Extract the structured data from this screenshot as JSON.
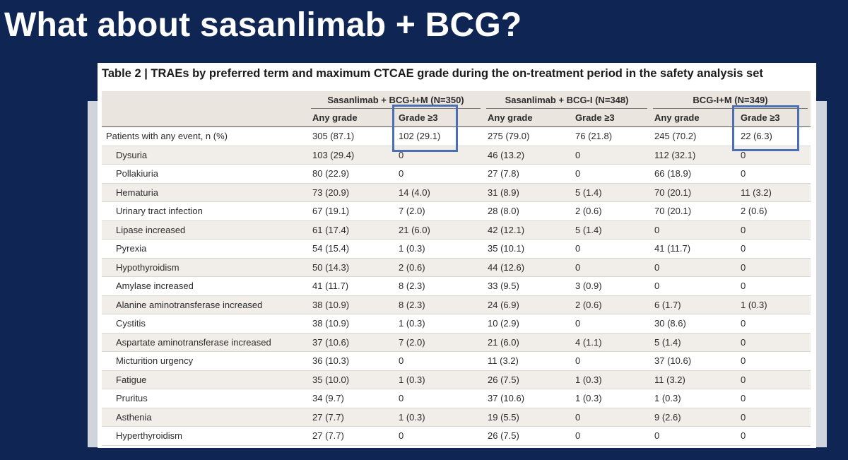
{
  "slide": {
    "title": "What about sasanlimab + BCG?"
  },
  "table": {
    "caption": "Table 2 | TRAEs by preferred term and maximum CTCAE grade during the on-treatment period in the safety analysis set",
    "groups": [
      "Sasanlimab + BCG-I+M (N=350)",
      "Sasanlimab + BCG-I (N=348)",
      "BCG-I+M (N=349)"
    ],
    "subheaders": [
      "Any grade",
      "Grade ≥3",
      "Any grade",
      "Grade ≥3",
      "Any grade",
      "Grade ≥3"
    ],
    "rows": [
      [
        "Patients with any event, n (%)",
        "305 (87.1)",
        "102 (29.1)",
        "275 (79.0)",
        "76 (21.8)",
        "245 (70.2)",
        "22 (6.3)"
      ],
      [
        "Dysuria",
        "103 (29.4)",
        "0",
        "46 (13.2)",
        "0",
        "112 (32.1)",
        "0"
      ],
      [
        "Pollakiuria",
        "80 (22.9)",
        "0",
        "27 (7.8)",
        "0",
        "66 (18.9)",
        "0"
      ],
      [
        "Hematuria",
        "73 (20.9)",
        "14 (4.0)",
        "31 (8.9)",
        "5 (1.4)",
        "70 (20.1)",
        "11 (3.2)"
      ],
      [
        "Urinary tract infection",
        "67 (19.1)",
        "7 (2.0)",
        "28 (8.0)",
        "2 (0.6)",
        "70 (20.1)",
        "2 (0.6)"
      ],
      [
        "Lipase increased",
        "61 (17.4)",
        "21 (6.0)",
        "42 (12.1)",
        "5 (1.4)",
        "0",
        "0"
      ],
      [
        "Pyrexia",
        "54 (15.4)",
        "1 (0.3)",
        "35 (10.1)",
        "0",
        "41 (11.7)",
        "0"
      ],
      [
        "Hypothyroidism",
        "50 (14.3)",
        "2 (0.6)",
        "44 (12.6)",
        "0",
        "0",
        "0"
      ],
      [
        "Amylase increased",
        "41 (11.7)",
        "8 (2.3)",
        "33 (9.5)",
        "3 (0.9)",
        "0",
        "0"
      ],
      [
        "Alanine aminotransferase increased",
        "38 (10.9)",
        "8 (2.3)",
        "24 (6.9)",
        "2 (0.6)",
        "6 (1.7)",
        "1 (0.3)"
      ],
      [
        "Cystitis",
        "38 (10.9)",
        "1 (0.3)",
        "10 (2.9)",
        "0",
        "30 (8.6)",
        "0"
      ],
      [
        "Aspartate aminotransferase increased",
        "37 (10.6)",
        "7 (2.0)",
        "21 (6.0)",
        "4 (1.1)",
        "5 (1.4)",
        "0"
      ],
      [
        "Micturition urgency",
        "36 (10.3)",
        "0",
        "11 (3.2)",
        "0",
        "37 (10.6)",
        "0"
      ],
      [
        "Fatigue",
        "35 (10.0)",
        "1 (0.3)",
        "26 (7.5)",
        "1 (0.3)",
        "11 (3.2)",
        "0"
      ],
      [
        "Pruritus",
        "34 (9.7)",
        "0",
        "37 (10.6)",
        "1 (0.3)",
        "1 (0.3)",
        "0"
      ],
      [
        "Asthenia",
        "27 (7.7)",
        "1 (0.3)",
        "19 (5.5)",
        "0",
        "9 (2.6)",
        "0"
      ],
      [
        "Hyperthyroidism",
        "27 (7.7)",
        "0",
        "26 (7.5)",
        "0",
        "0",
        "0"
      ]
    ]
  },
  "colors": {
    "background": "#0f2655",
    "highlight": "#4a6fb5",
    "header_band": "#eae6df"
  }
}
